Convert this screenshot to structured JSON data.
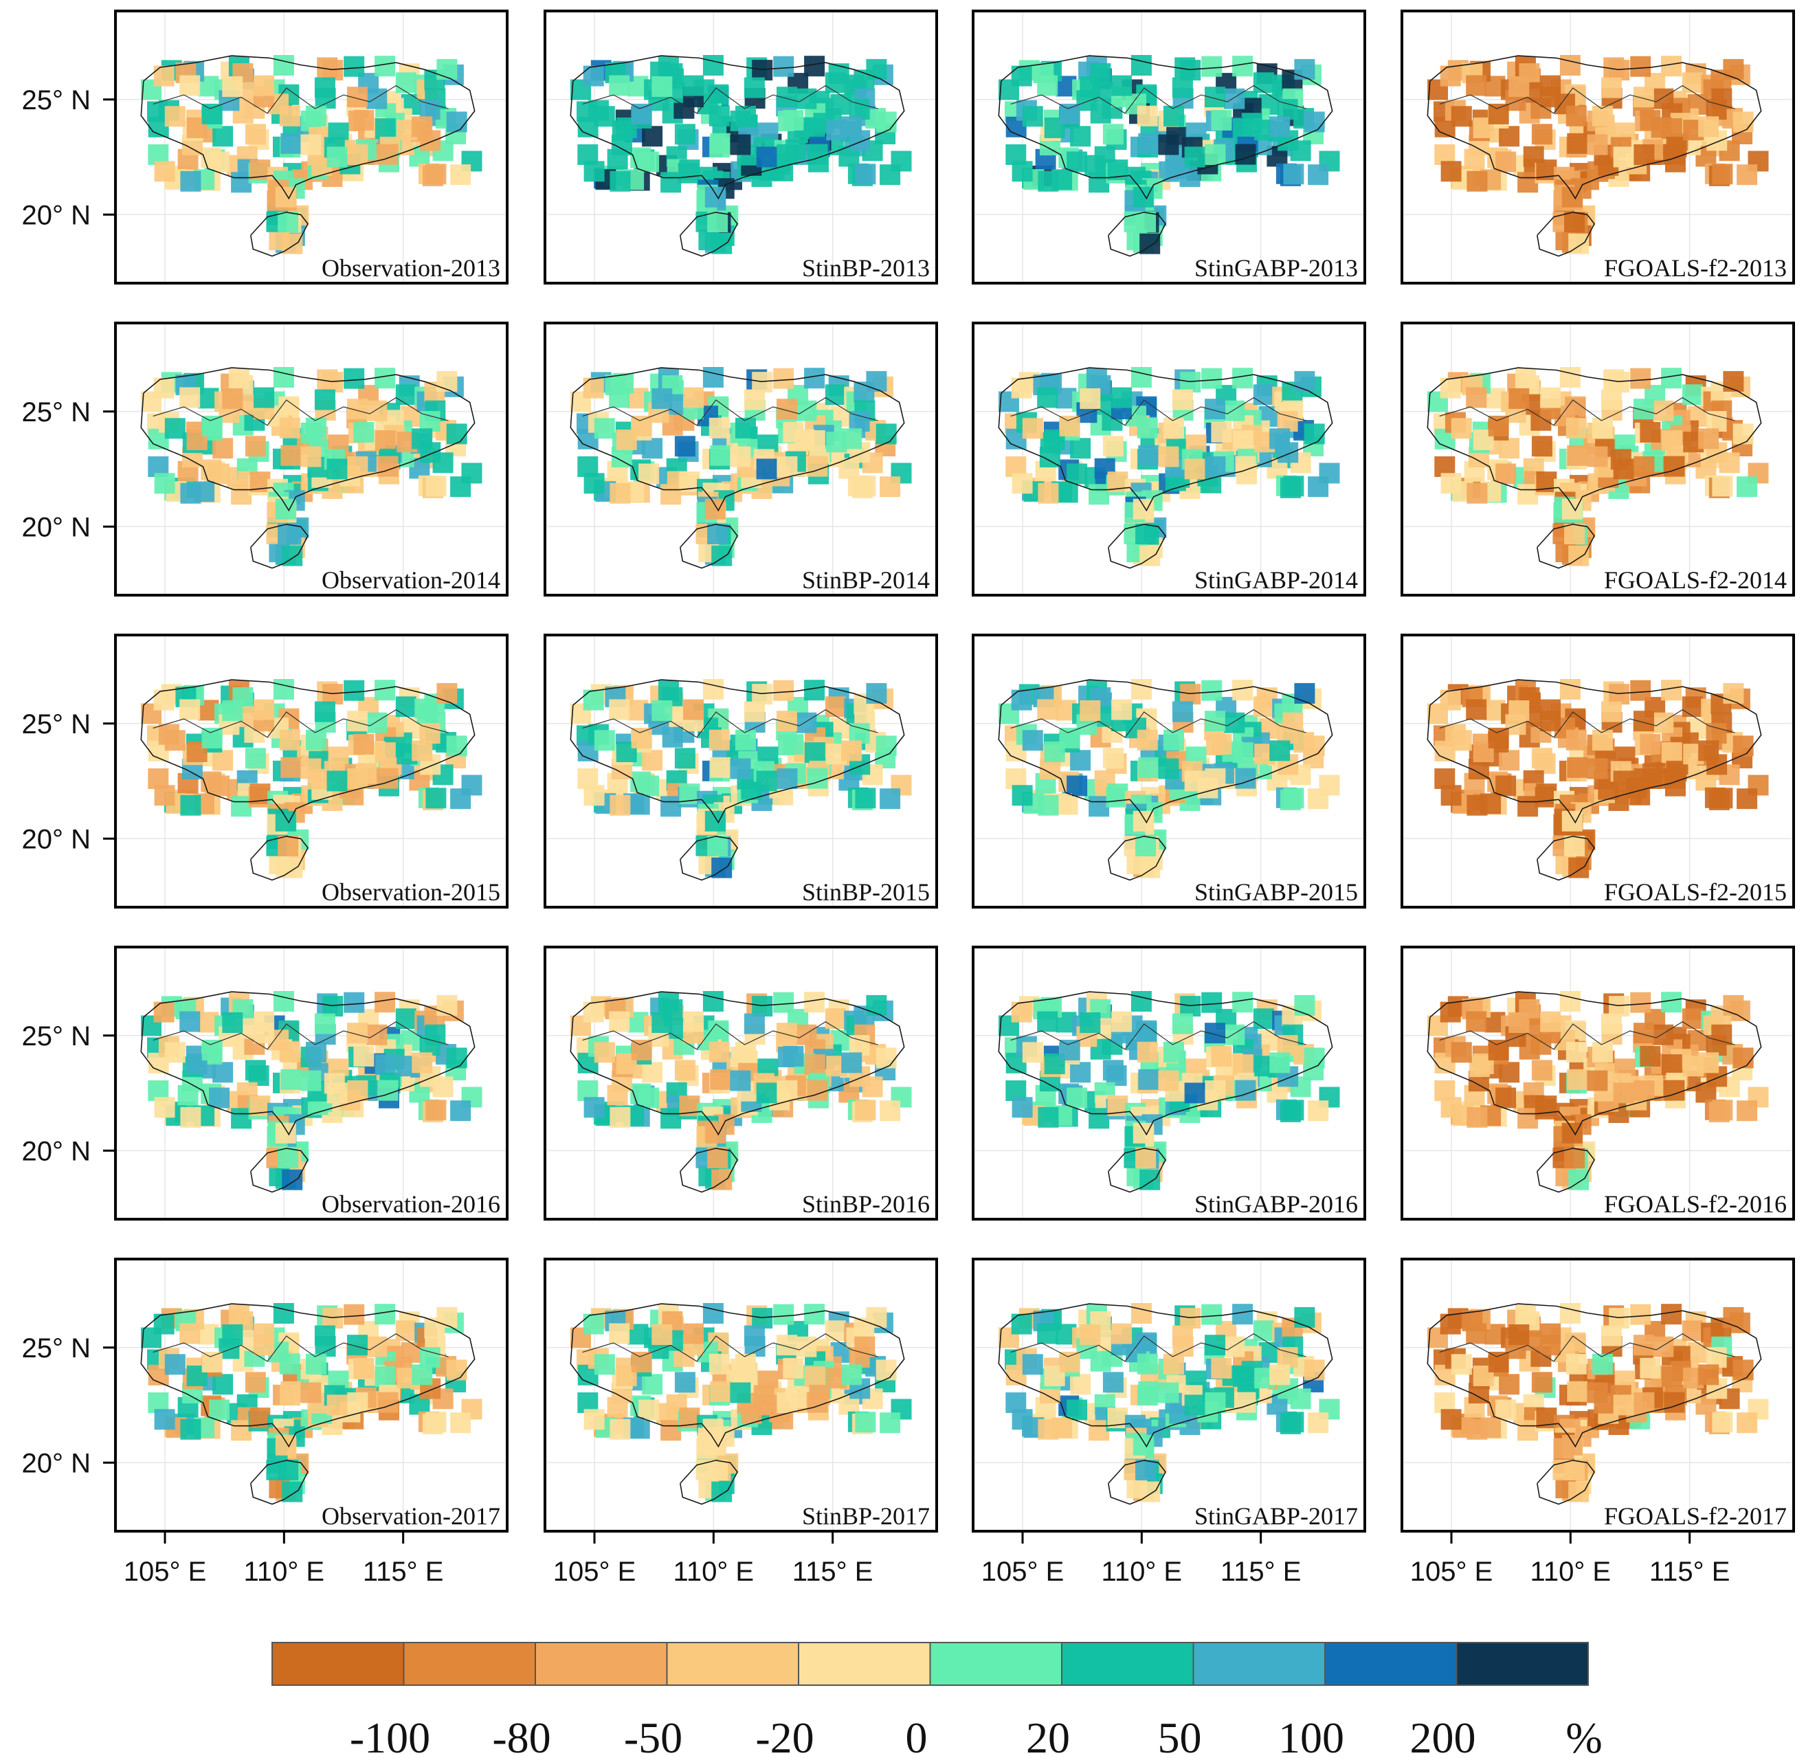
{
  "axes": {
    "y_ticks": [
      "25° N",
      "20° N"
    ],
    "x_ticks": [
      "105° E",
      "110° E",
      "115° E"
    ]
  },
  "panels": [
    {
      "label": "Observation-2013",
      "hue": 0.5
    },
    {
      "label": "StinBP-2013",
      "hue": 0.8
    },
    {
      "label": "StinGABP-2013",
      "hue": 0.75
    },
    {
      "label": "FGOALS-f2-2013",
      "hue": 0.2
    },
    {
      "label": "Observation-2014",
      "hue": 0.5
    },
    {
      "label": "StinBP-2014",
      "hue": 0.55
    },
    {
      "label": "StinGABP-2014",
      "hue": 0.6
    },
    {
      "label": "FGOALS-f2-2014",
      "hue": 0.3
    },
    {
      "label": "Observation-2015",
      "hue": 0.45
    },
    {
      "label": "StinBP-2015",
      "hue": 0.55
    },
    {
      "label": "StinGABP-2015",
      "hue": 0.55
    },
    {
      "label": "FGOALS-f2-2015",
      "hue": 0.15
    },
    {
      "label": "Observation-2016",
      "hue": 0.55
    },
    {
      "label": "StinBP-2016",
      "hue": 0.5
    },
    {
      "label": "StinGABP-2016",
      "hue": 0.6
    },
    {
      "label": "FGOALS-f2-2016",
      "hue": 0.25
    },
    {
      "label": "Observation-2017",
      "hue": 0.45
    },
    {
      "label": "StinBP-2017",
      "hue": 0.5
    },
    {
      "label": "StinGABP-2017",
      "hue": 0.55
    },
    {
      "label": "FGOALS-f2-2017",
      "hue": 0.25
    }
  ],
  "legend": {
    "colors": [
      "#cd6b1f",
      "#e1873a",
      "#f2a95f",
      "#fbc97e",
      "#fde09b",
      "#62eeb0",
      "#12c1a3",
      "#3faec9",
      "#1170b5",
      "#0d3450"
    ],
    "labels": [
      "-100",
      "-80",
      "-50",
      "-20",
      "0",
      "20",
      "50",
      "100",
      "200"
    ],
    "unit": "%"
  }
}
